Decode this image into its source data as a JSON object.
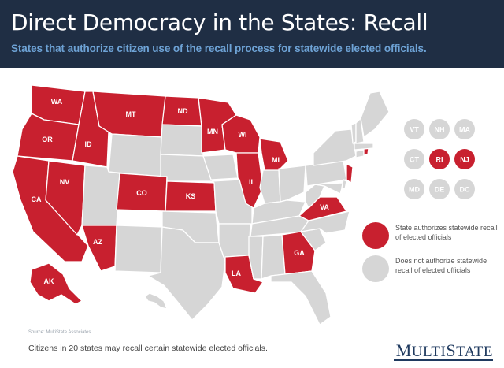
{
  "header": {
    "title": "Direct Democracy in the States: Recall",
    "subtitle": "States that authorize citizen use of the recall process for statewide elected officials."
  },
  "colors": {
    "recall": "#c8202f",
    "no_recall": "#d6d6d6",
    "header_bg": "#1f2e44",
    "subtitle": "#6ea3d6",
    "border": "#ffffff"
  },
  "legend": {
    "recall": "State authorizes statewide recall of elected officials",
    "no_recall": "Does not authorize statewide recall of elected officials"
  },
  "map": {
    "recall_states": [
      "WA",
      "OR",
      "CA",
      "NV",
      "ID",
      "MT",
      "AZ",
      "CO",
      "ND",
      "MN",
      "KS",
      "WI",
      "IL",
      "MI",
      "LA",
      "GA",
      "VA",
      "NJ",
      "RI",
      "AK"
    ],
    "small_states": [
      {
        "label": "VT",
        "recall": false
      },
      {
        "label": "NH",
        "recall": false
      },
      {
        "label": "MA",
        "recall": false
      },
      {
        "label": "CT",
        "recall": false
      },
      {
        "label": "RI",
        "recall": true
      },
      {
        "label": "NJ",
        "recall": true
      },
      {
        "label": "MD",
        "recall": false
      },
      {
        "label": "DE",
        "recall": false
      },
      {
        "label": "DC",
        "recall": false
      }
    ]
  },
  "source": "Source: MultiState Associates",
  "footnote": "Citizens in 20 states may recall certain statewide elected officials.",
  "logo": {
    "first": "M",
    "rest": "ULTI",
    "first2": "S",
    "rest2": "TATE"
  }
}
